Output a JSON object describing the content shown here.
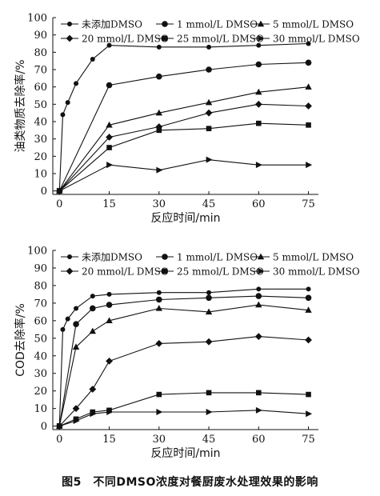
{
  "caption": "图5　不同DMSO浓度对餐厨废水处理效果的影响",
  "chart_data": [
    {
      "type": "line",
      "xlabel": "反应时间/min",
      "ylabel": "油类物质去除率/%",
      "xticks": [
        0,
        15,
        30,
        45,
        60,
        75
      ],
      "yticks": [
        0,
        10,
        20,
        30,
        40,
        50,
        60,
        70,
        80,
        90,
        100
      ],
      "xlim": [
        -2,
        78
      ],
      "ylim": [
        -2,
        100
      ],
      "legend_columns": 3,
      "legend_placement": "top",
      "grid": false,
      "series": [
        {
          "name": "未添加DMSO",
          "marker": "circle-small",
          "x": [
            0,
            1,
            2.5,
            5,
            10,
            15,
            30,
            45,
            60,
            75
          ],
          "y": [
            0,
            44,
            51,
            62,
            76,
            84,
            83,
            83,
            84,
            85
          ]
        },
        {
          "name": "1 mmol/L DMSO",
          "marker": "circle",
          "x": [
            0,
            15,
            30,
            45,
            60,
            75
          ],
          "y": [
            0,
            61,
            66,
            70,
            73,
            74
          ]
        },
        {
          "name": "5 mmol/L DMSO",
          "marker": "triangle-up",
          "x": [
            0,
            15,
            30,
            45,
            60,
            75
          ],
          "y": [
            0,
            38,
            45,
            51,
            57,
            60
          ]
        },
        {
          "name": "20 mmol/L DMSO",
          "marker": "diamond",
          "x": [
            0,
            15,
            30,
            45,
            60,
            75
          ],
          "y": [
            0,
            31,
            37,
            45,
            50,
            49
          ]
        },
        {
          "name": "25 mmol/L DMSO",
          "marker": "square",
          "x": [
            0,
            15,
            30,
            45,
            60,
            75
          ],
          "y": [
            0,
            25,
            35,
            36,
            39,
            38
          ]
        },
        {
          "name": "30 mmol/L DMSO",
          "marker": "triangle-right",
          "x": [
            0,
            15,
            30,
            45,
            60,
            75
          ],
          "y": [
            0,
            15,
            12,
            18,
            15,
            15
          ]
        }
      ]
    },
    {
      "type": "line",
      "xlabel": "反应时间/min",
      "ylabel": "COD去除率/%",
      "xticks": [
        0,
        15,
        30,
        45,
        60,
        75
      ],
      "yticks": [
        0,
        10,
        20,
        30,
        40,
        50,
        60,
        70,
        80,
        90,
        100
      ],
      "xlim": [
        -2,
        78
      ],
      "ylim": [
        -2,
        100
      ],
      "legend_columns": 3,
      "legend_placement": "top",
      "grid": false,
      "series": [
        {
          "name": "未添加DMSO",
          "marker": "circle-small",
          "x": [
            0,
            1,
            2.5,
            5,
            10,
            15,
            30,
            45,
            60,
            75
          ],
          "y": [
            0,
            55,
            61,
            67,
            74,
            75,
            76,
            76,
            78,
            78
          ]
        },
        {
          "name": "1 mmol/L DMSO",
          "marker": "circle",
          "x": [
            0,
            5,
            10,
            15,
            30,
            45,
            60,
            75
          ],
          "y": [
            0,
            58,
            67,
            69,
            72,
            73,
            74,
            73
          ]
        },
        {
          "name": "5 mmol/L DMSO",
          "marker": "triangle-up",
          "x": [
            0,
            5,
            10,
            15,
            30,
            45,
            60,
            75
          ],
          "y": [
            0,
            45,
            54,
            60,
            67,
            65,
            69,
            66
          ]
        },
        {
          "name": "20 mmol/L DMSO",
          "marker": "diamond",
          "x": [
            0,
            5,
            10,
            15,
            30,
            45,
            60,
            75
          ],
          "y": [
            0,
            10,
            21,
            37,
            47,
            48,
            51,
            49
          ]
        },
        {
          "name": "25 mmol/L DMSO",
          "marker": "square",
          "x": [
            0,
            5,
            10,
            15,
            30,
            45,
            60,
            75
          ],
          "y": [
            0,
            4,
            8,
            9,
            18,
            19,
            19,
            18
          ]
        },
        {
          "name": "30 mmol/L DMSO",
          "marker": "triangle-right",
          "x": [
            0,
            5,
            10,
            15,
            30,
            45,
            60,
            75
          ],
          "y": [
            0,
            3,
            7,
            8,
            8,
            8,
            9,
            7
          ]
        }
      ]
    }
  ]
}
